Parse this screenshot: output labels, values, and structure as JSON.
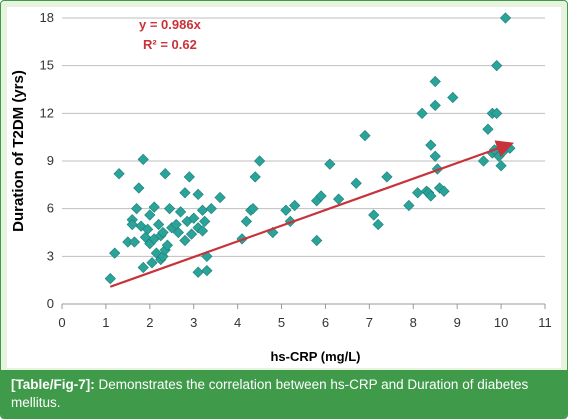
{
  "chart_data": {
    "type": "scatter",
    "xlabel": "hs-CRP (mg/L)",
    "ylabel": "Duration of T2DM (yrs)",
    "xlim": [
      0,
      11
    ],
    "ylim": [
      0,
      18
    ],
    "x_ticks": [
      "0",
      "1",
      "2",
      "3",
      "4",
      "5",
      "6",
      "7",
      "8",
      "9",
      "10",
      "11"
    ],
    "y_ticks": [
      "0",
      "3",
      "6",
      "9",
      "12",
      "15",
      "18"
    ],
    "grid": "horizontal",
    "annotations": {
      "equation": "y = 0.986x",
      "r_squared": "R² = 0.62"
    },
    "trendline": {
      "slope": 0.986,
      "x_start": 1.1,
      "x_end": 10.2
    },
    "colors": {
      "marker": "#2aa39a",
      "trendline": "#c8323a",
      "axis": "#999999",
      "grid": "#bfbfbf"
    },
    "points": [
      [
        1.1,
        1.6
      ],
      [
        1.2,
        3.2
      ],
      [
        1.3,
        8.2
      ],
      [
        1.5,
        3.9
      ],
      [
        1.6,
        5.3
      ],
      [
        1.6,
        5.0
      ],
      [
        1.65,
        3.9
      ],
      [
        1.7,
        6.0
      ],
      [
        1.75,
        7.3
      ],
      [
        1.8,
        4.9
      ],
      [
        1.85,
        9.1
      ],
      [
        1.85,
        2.3
      ],
      [
        1.9,
        4.2
      ],
      [
        1.95,
        4.7
      ],
      [
        2.0,
        3.8
      ],
      [
        2.0,
        5.6
      ],
      [
        2.05,
        2.6
      ],
      [
        2.1,
        6.1
      ],
      [
        2.1,
        4.1
      ],
      [
        2.15,
        3.2
      ],
      [
        2.2,
        5.0
      ],
      [
        2.25,
        4.3
      ],
      [
        2.25,
        2.8
      ],
      [
        2.3,
        3.0
      ],
      [
        2.3,
        4.5
      ],
      [
        2.35,
        3.4
      ],
      [
        2.35,
        8.2
      ],
      [
        2.4,
        3.7
      ],
      [
        2.45,
        6.0
      ],
      [
        2.5,
        4.8
      ],
      [
        2.6,
        5.0
      ],
      [
        2.65,
        4.5
      ],
      [
        2.7,
        5.8
      ],
      [
        2.8,
        4.0
      ],
      [
        2.8,
        7.0
      ],
      [
        2.85,
        5.2
      ],
      [
        2.9,
        8.0
      ],
      [
        2.95,
        4.4
      ],
      [
        3.0,
        5.4
      ],
      [
        3.1,
        4.8
      ],
      [
        3.1,
        6.9
      ],
      [
        3.1,
        2.0
      ],
      [
        3.2,
        5.9
      ],
      [
        3.2,
        4.6
      ],
      [
        3.25,
        5.2
      ],
      [
        3.3,
        3.0
      ],
      [
        3.3,
        2.1
      ],
      [
        3.4,
        6.0
      ],
      [
        3.6,
        6.7
      ],
      [
        4.1,
        4.1
      ],
      [
        4.2,
        5.2
      ],
      [
        4.3,
        5.9
      ],
      [
        4.35,
        6.0
      ],
      [
        4.4,
        8.0
      ],
      [
        4.5,
        9.0
      ],
      [
        4.8,
        4.5
      ],
      [
        5.1,
        5.9
      ],
      [
        5.2,
        5.2
      ],
      [
        5.3,
        6.2
      ],
      [
        5.8,
        4.0
      ],
      [
        5.8,
        6.5
      ],
      [
        5.9,
        6.8
      ],
      [
        6.1,
        8.8
      ],
      [
        6.3,
        6.6
      ],
      [
        6.7,
        7.6
      ],
      [
        6.9,
        10.6
      ],
      [
        7.1,
        5.6
      ],
      [
        7.2,
        5.0
      ],
      [
        7.4,
        8.0
      ],
      [
        7.9,
        6.2
      ],
      [
        8.1,
        7.0
      ],
      [
        8.2,
        12.0
      ],
      [
        8.3,
        7.1
      ],
      [
        8.35,
        7.0
      ],
      [
        8.4,
        6.8
      ],
      [
        8.4,
        10.0
      ],
      [
        8.5,
        14.0
      ],
      [
        8.5,
        12.5
      ],
      [
        8.5,
        9.3
      ],
      [
        8.55,
        8.5
      ],
      [
        8.6,
        7.3
      ],
      [
        8.7,
        7.1
      ],
      [
        8.9,
        13.0
      ],
      [
        9.6,
        9.0
      ],
      [
        9.7,
        11.0
      ],
      [
        9.8,
        9.5
      ],
      [
        9.8,
        12.0
      ],
      [
        9.85,
        9.7
      ],
      [
        9.9,
        15.0
      ],
      [
        9.9,
        12.0
      ],
      [
        9.95,
        9.3
      ],
      [
        10.0,
        8.7
      ],
      [
        10.05,
        9.6
      ],
      [
        10.1,
        18.0
      ],
      [
        10.2,
        9.8
      ]
    ]
  },
  "caption": {
    "label": "[Table/Fig-7]:",
    "text": " Demonstrates the correlation between hs-CRP and Duration of diabetes mellitus."
  }
}
